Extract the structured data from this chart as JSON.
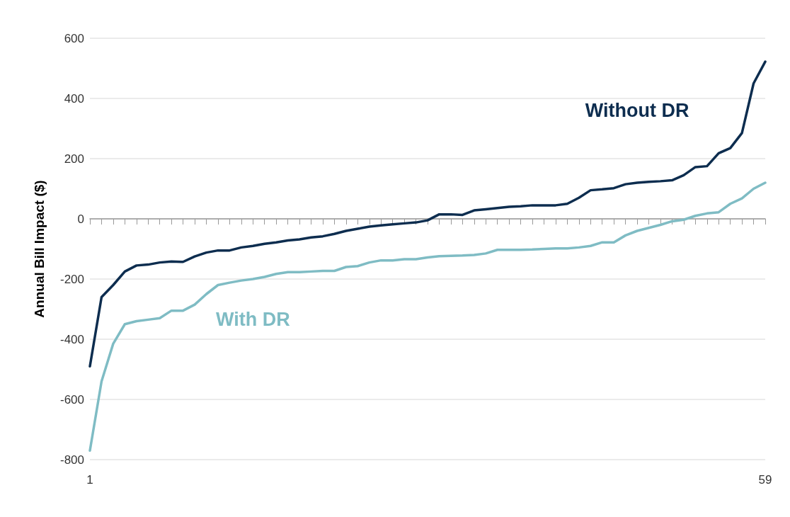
{
  "chart_data": {
    "type": "line",
    "ylabel": "Annual Bill Impact ($)",
    "categories": [
      "1",
      null,
      null,
      null,
      null,
      null,
      null,
      null,
      null,
      null,
      null,
      null,
      null,
      null,
      null,
      null,
      null,
      null,
      null,
      null,
      null,
      null,
      null,
      null,
      null,
      null,
      null,
      null,
      null,
      null,
      null,
      null,
      null,
      null,
      null,
      null,
      null,
      null,
      null,
      null,
      null,
      null,
      null,
      null,
      null,
      null,
      null,
      null,
      null,
      null,
      null,
      null,
      null,
      null,
      null,
      null,
      null,
      null,
      "59"
    ],
    "series": [
      {
        "name": "Without DR",
        "color": "#0d2d4f",
        "values": [
          -490,
          -260,
          -220,
          -175,
          -155,
          -152,
          -145,
          -142,
          -143,
          -125,
          -112,
          -105,
          -105,
          -95,
          -90,
          -83,
          -78,
          -72,
          -68,
          -62,
          -58,
          -50,
          -40,
          -33,
          -26,
          -22,
          -18,
          -15,
          -12,
          -5,
          15,
          15,
          13,
          28,
          32,
          36,
          40,
          42,
          45,
          45,
          45,
          50,
          70,
          95,
          98,
          102,
          115,
          120,
          123,
          125,
          128,
          145,
          172,
          175,
          218,
          235,
          285,
          450,
          522
        ]
      },
      {
        "name": "With DR",
        "color": "#7fbcc4",
        "values": [
          -770,
          -540,
          -415,
          -350,
          -340,
          -335,
          -330,
          -305,
          -305,
          -285,
          -250,
          -220,
          -212,
          -205,
          -200,
          -193,
          -183,
          -177,
          -177,
          -175,
          -173,
          -173,
          -160,
          -157,
          -145,
          -138,
          -138,
          -134,
          -134,
          -128,
          -124,
          -123,
          -122,
          -120,
          -115,
          -103,
          -103,
          -103,
          -102,
          -100,
          -98,
          -98,
          -95,
          -90,
          -78,
          -78,
          -55,
          -40,
          -30,
          -20,
          -8,
          -3,
          10,
          18,
          22,
          50,
          68,
          100,
          120
        ]
      }
    ],
    "ylim": [
      -800,
      600
    ],
    "yticks": [
      -800,
      -600,
      -400,
      -200,
      0,
      200,
      400,
      600
    ],
    "grid": "y",
    "legend": false,
    "marker": "none",
    "line_style": "solid"
  }
}
